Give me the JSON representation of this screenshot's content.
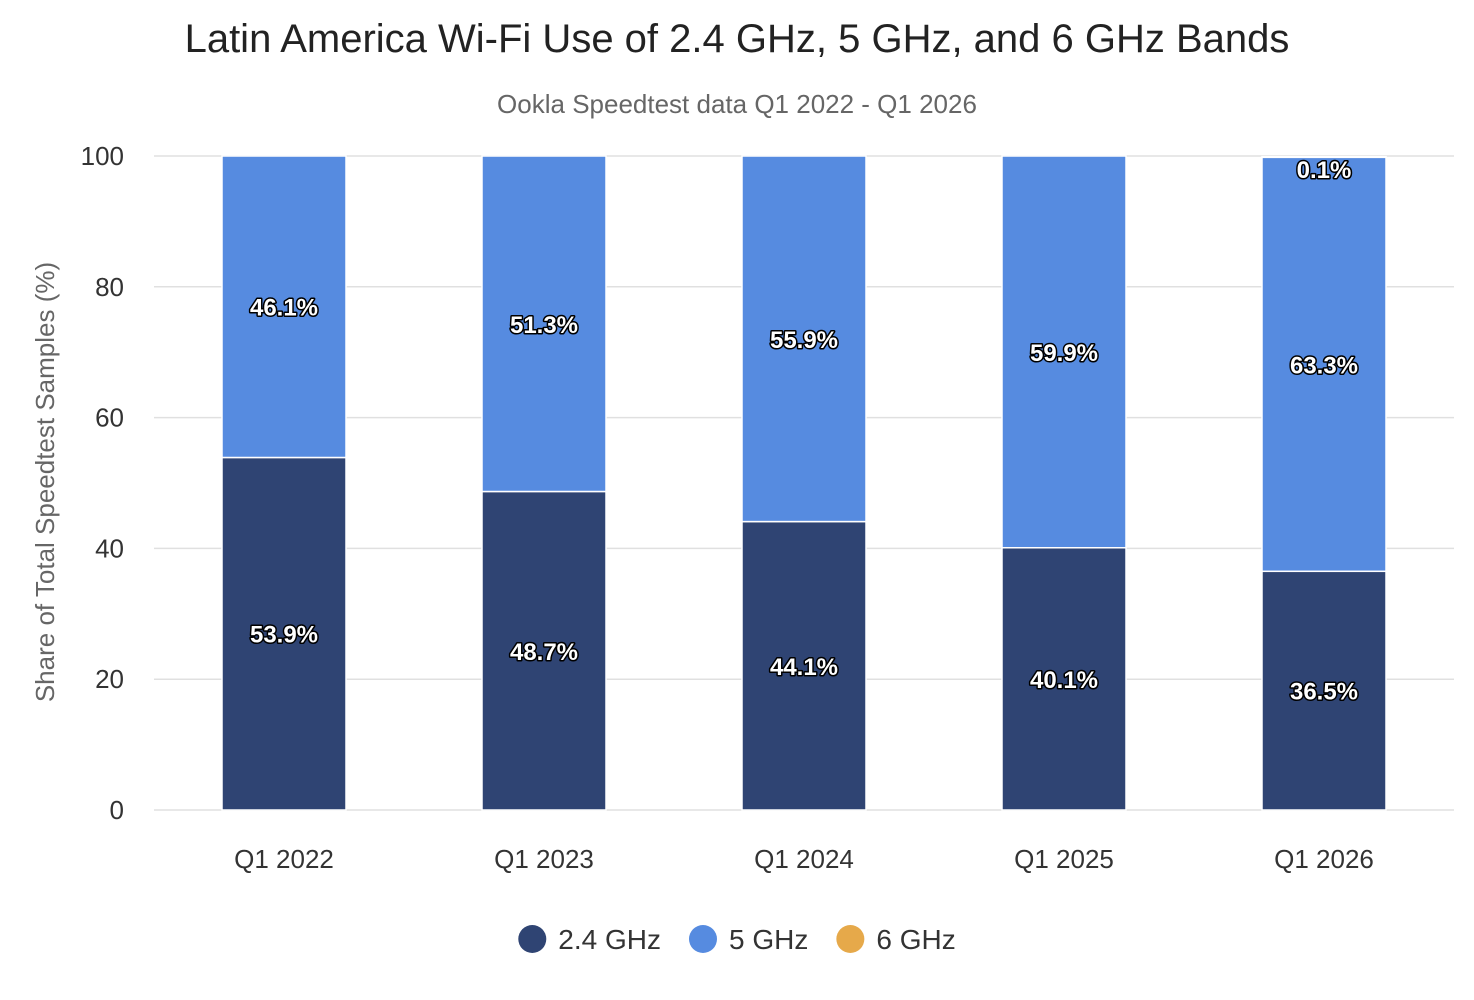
{
  "chart_data": {
    "type": "bar",
    "stacked": true,
    "title": "Latin America Wi-Fi Use of 2.4 GHz, 5 GHz, and 6 GHz Bands",
    "subtitle": "Ookla Speedtest data Q1 2022 - Q1 2026",
    "ylabel": "Share of Total Speedtest Samples (%)",
    "xlabel": "",
    "ylim": [
      0,
      100
    ],
    "yticks": [
      "0",
      "20",
      "40",
      "60",
      "80",
      "100"
    ],
    "categories": [
      "Q1 2022",
      "Q1 2023",
      "Q1 2024",
      "Q1 2025",
      "Q1 2026"
    ],
    "series": [
      {
        "name": "2.4 GHz",
        "color": "#2f4473",
        "values": [
          53.9,
          48.7,
          44.1,
          40.1,
          36.5
        ],
        "labels": [
          "53.9%",
          "48.7%",
          "44.1%",
          "40.1%",
          "36.5%"
        ]
      },
      {
        "name": "5 GHz",
        "color": "#568be0",
        "values": [
          46.1,
          51.3,
          55.9,
          59.9,
          63.3
        ],
        "labels": [
          "46.1%",
          "51.3%",
          "55.9%",
          "59.9%",
          "63.3%"
        ]
      },
      {
        "name": "6 GHz",
        "color": "#e6a94a",
        "values": [
          0,
          0,
          0,
          0,
          0.1
        ],
        "labels": [
          "",
          "",
          "",
          "",
          "0.1%"
        ]
      }
    ],
    "grid": true,
    "legend_position": "bottom"
  }
}
